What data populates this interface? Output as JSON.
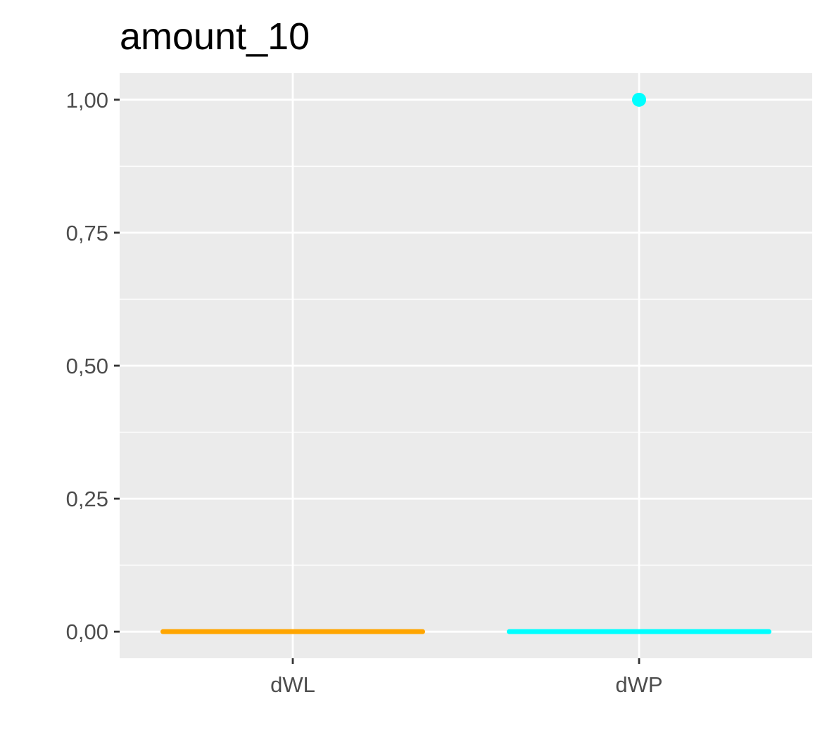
{
  "chart_data": {
    "type": "boxplot",
    "title": "amount_10",
    "xlabel": "",
    "ylabel": "",
    "categories": [
      "dWL",
      "dWP"
    ],
    "ylim": [
      -0.05,
      1.05
    ],
    "y_ticks": [
      0.0,
      0.25,
      0.5,
      0.75,
      1.0
    ],
    "y_tick_labels": [
      "0,00",
      "0,25",
      "0,50",
      "0,75",
      "1,00"
    ],
    "grid": true,
    "legend": "none",
    "series": [
      {
        "category": "dWL",
        "color": "#FFA500",
        "q1": 0,
        "median": 0,
        "q3": 0,
        "whisker_low": 0,
        "whisker_high": 0,
        "outliers": []
      },
      {
        "category": "dWP",
        "color": "#00FFFF",
        "q1": 0,
        "median": 0,
        "q3": 0,
        "whisker_low": 0,
        "whisker_high": 0,
        "outliers": [
          1.0
        ]
      }
    ]
  },
  "colors": {
    "panel_background": "#EBEBEB",
    "grid": "#FFFFFF",
    "axis_text": "#4D4D4D",
    "tick": "#333333"
  }
}
